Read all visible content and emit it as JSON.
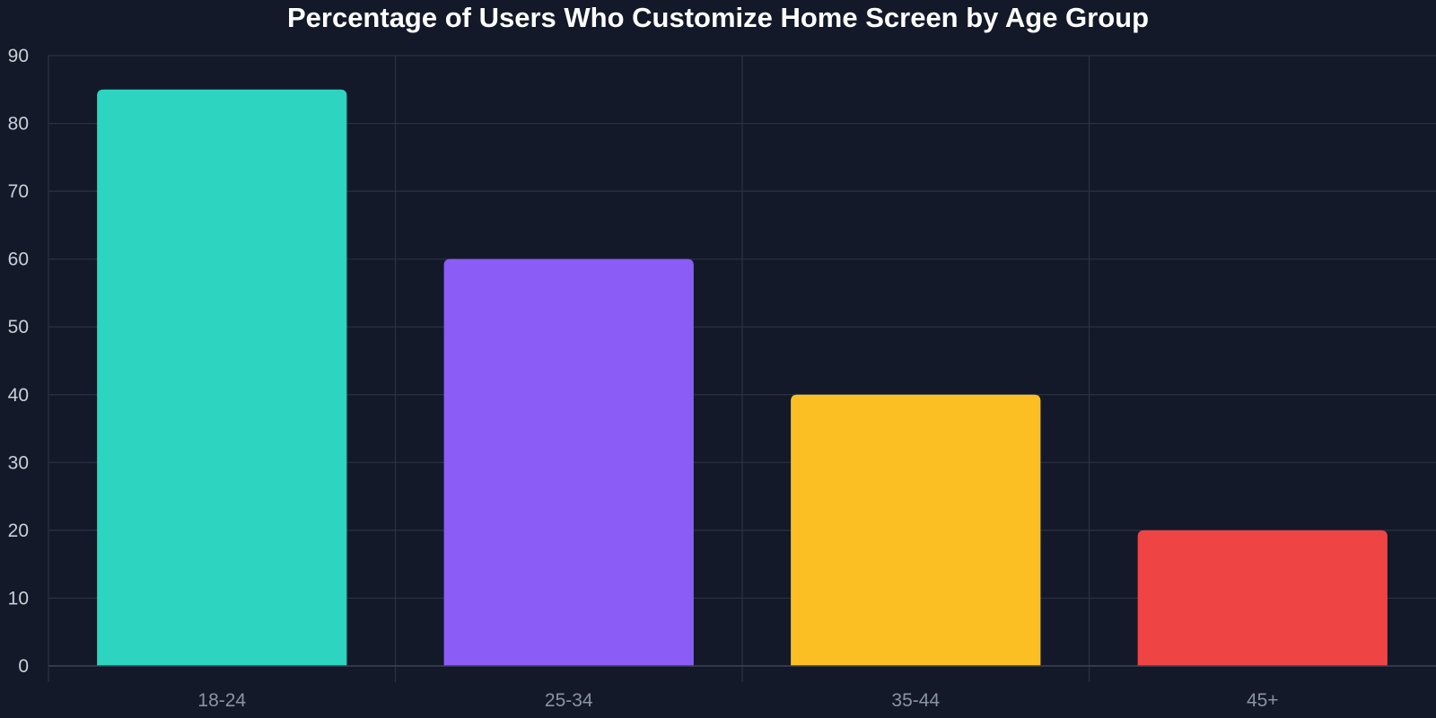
{
  "chart_data": {
    "type": "bar",
    "title": "Percentage of Users Who Customize Home Screen by Age Group",
    "xlabel": "",
    "ylabel": "",
    "categories": [
      "18-24",
      "25-34",
      "35-44",
      "45+"
    ],
    "values": [
      85,
      60,
      40,
      20
    ],
    "colors": [
      "#2dd4bf",
      "#8b5cf6",
      "#fbbf24",
      "#ef4444"
    ],
    "ylim": [
      0,
      90
    ],
    "yticks": [
      0,
      10,
      20,
      30,
      40,
      50,
      60,
      70,
      80,
      90
    ],
    "grid": true,
    "legend": "none"
  },
  "theme": {
    "background": "#131928",
    "grid_color": "#2b3242",
    "axis_color": "#3a4152",
    "ytick_color": "#cbd0d8",
    "xtick_color": "#8a93a3",
    "title_color": "#ffffff"
  }
}
